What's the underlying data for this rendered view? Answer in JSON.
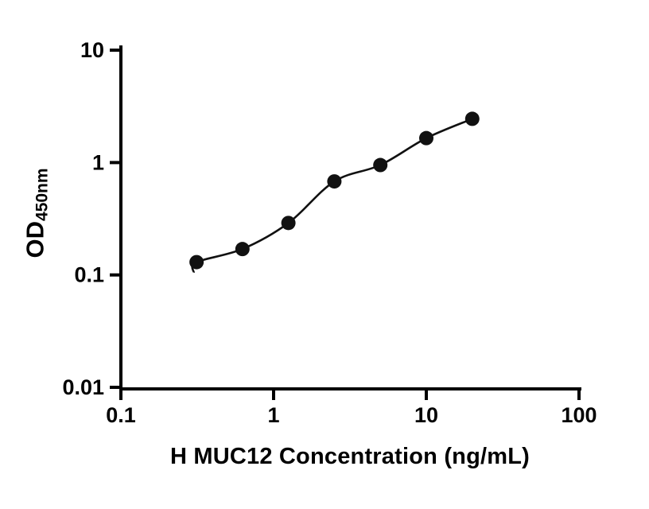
{
  "figure": {
    "background": "#ffffff"
  },
  "chart": {
    "xlabel": "H MUC12 Concentration (ng/mL)",
    "ylabel_main": "OD",
    "ylabel_sub": "450nm"
  },
  "chart_data": {
    "type": "scatter",
    "x": [
      0.313,
      0.625,
      1.25,
      2.5,
      5,
      10,
      20
    ],
    "y": [
      0.13,
      0.17,
      0.29,
      0.68,
      0.95,
      1.65,
      2.45
    ],
    "fit_curve": {
      "present": true,
      "style": "smooth-through-points",
      "start": {
        "x": 0.3,
        "y": 0.105
      }
    },
    "title": "",
    "xlabel": "H MUC12 Concentration (ng/mL)",
    "ylabel": "OD450nm",
    "xscale": "log",
    "yscale": "log",
    "xlim": [
      0.1,
      100
    ],
    "ylim": [
      0.01,
      10
    ],
    "x_ticks": [
      0.1,
      1,
      10,
      100
    ],
    "x_tick_labels": [
      "0.1",
      "1",
      "10",
      "100"
    ],
    "y_ticks": [
      0.01,
      0.1,
      1,
      10
    ],
    "y_tick_labels": [
      "0.01",
      "0.1",
      "1",
      "10"
    ],
    "grid": false,
    "legend": null,
    "marker_color": "#111111",
    "line_color": "#111111",
    "axis_color": "#000000"
  }
}
